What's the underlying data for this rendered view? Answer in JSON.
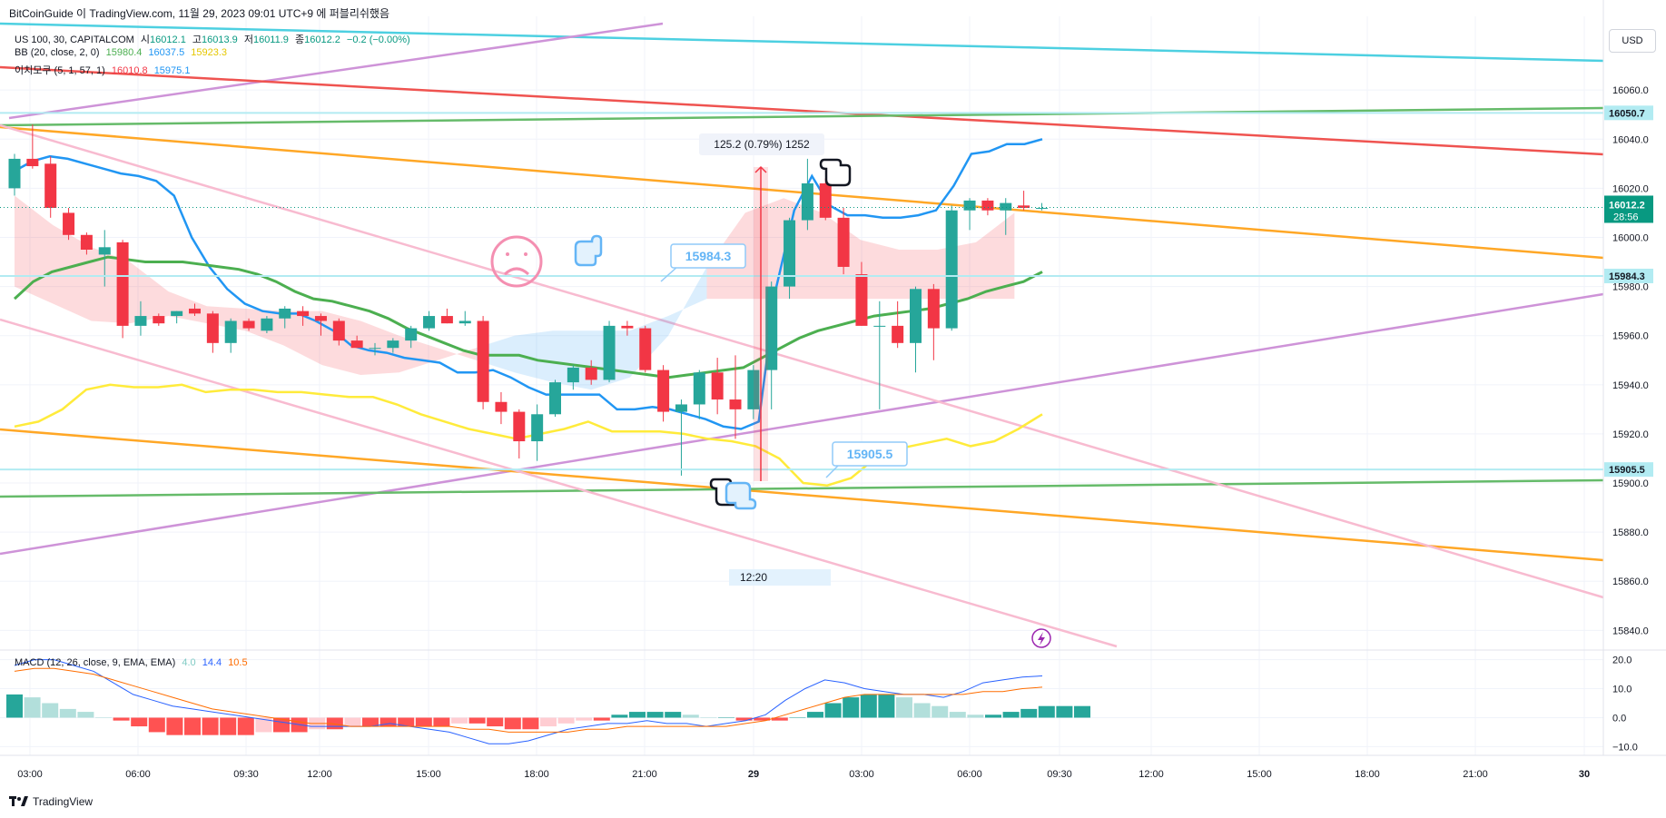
{
  "header": {
    "attribution": "BitCoinGuide 이 TradingView.com, 11월 29, 2023 09:01 UTC+9 에 퍼블리쉬했음"
  },
  "legend": {
    "symbol": "US 100, 30, CAPITALCOM",
    "open_label": "시",
    "open": "16012.1",
    "high_label": "고",
    "high": "16013.9",
    "low_label": "저",
    "low": "16011.9",
    "close_label": "종",
    "close": "16012.2",
    "change": "−0.2 (−0.00%)",
    "bb_label": "BB (20, close, 2, 0)",
    "bb_basis": "15980.4",
    "bb_upper": "16037.5",
    "bb_lower": "15923.3",
    "ichimoku_label": "이치모쿠 (5, 1, 57, 1)",
    "ichi_a": "16010.8",
    "ichi_b": "15975.1",
    "macd_label": "MACD (12, 26, close, 9, EMA, EMA)",
    "macd_hist": "4.0",
    "macd_line": "14.4",
    "macd_signal": "10.5"
  },
  "currency": "USD",
  "annotations": {
    "measure": "125.2 (0.79%) 1252",
    "callout_1": "15984.3",
    "callout_2": "15905.5",
    "time_marker": "12:20"
  },
  "price_badges": {
    "hline_top": "16050.7",
    "current": "16012.2",
    "countdown": "28:56",
    "hline_mid": "15984.3",
    "hline_low": "15905.5"
  },
  "footer": {
    "brand": "TradingView"
  },
  "colors": {
    "up": "#26a69a",
    "down": "#f23645",
    "bb_basis": "#4caf50",
    "bb_upper": "#2196f3",
    "bb_lower": "#ffeb3b",
    "ichi_a": "#f23645",
    "ichi_b": "#2196f3",
    "macd_line": "#2962ff",
    "macd_signal": "#ff6d00",
    "hist_up_strong": "#26a69a",
    "hist_up_weak": "#b2dfdb",
    "hist_down_strong": "#ff5252",
    "hist_down_weak": "#ffcdd2"
  },
  "chart_data": [
    {
      "type": "candlestick",
      "title": "US 100, 30, CAPITALCOM",
      "y_ticks": [
        15840,
        15860,
        15880,
        15900,
        15920,
        15940,
        15960,
        15980,
        16000,
        16020,
        16040,
        16060
      ],
      "ylim": [
        15832,
        16090
      ],
      "x_ticks": [
        "03:00",
        "06:00",
        "09:30",
        "12:00",
        "15:00",
        "18:00",
        "21:00",
        "29",
        "03:00",
        "06:00",
        "09:30",
        "12:00",
        "15:00",
        "18:00",
        "21:00",
        "30"
      ],
      "candles": [
        [
          16020,
          16034,
          16017,
          16032
        ],
        [
          16032,
          16046,
          16028,
          16029
        ],
        [
          16030,
          16033,
          16008,
          16012
        ],
        [
          16010,
          16012,
          15999,
          16001
        ],
        [
          16001,
          16002,
          15993,
          15995
        ],
        [
          15993,
          16003,
          15980,
          15996
        ],
        [
          15998,
          15999,
          15959,
          15964
        ],
        [
          15964,
          15974,
          15960,
          15968
        ],
        [
          15968,
          15969,
          15964,
          15965
        ],
        [
          15968,
          15970,
          15965,
          15970
        ],
        [
          15971,
          15973,
          15968,
          15969
        ],
        [
          15969,
          15970,
          15953,
          15957
        ],
        [
          15957,
          15967,
          15953,
          15966
        ],
        [
          15966,
          15967,
          15962,
          15963
        ],
        [
          15962,
          15968,
          15961,
          15967
        ],
        [
          15967,
          15972,
          15963,
          15971
        ],
        [
          15970,
          15972,
          15964,
          15968
        ],
        [
          15968,
          15969,
          15960,
          15966
        ],
        [
          15966,
          15967,
          15956,
          15958
        ],
        [
          15958,
          15960,
          15955,
          15955
        ],
        [
          15955,
          15957,
          15952,
          15955
        ],
        [
          15955,
          15959,
          15953,
          15958
        ],
        [
          15958,
          15964,
          15955,
          15963
        ],
        [
          15963,
          15970,
          15962,
          15968
        ],
        [
          15968,
          15971,
          15965,
          15965
        ],
        [
          15965,
          15970,
          15964,
          15966
        ],
        [
          15966,
          15968,
          15930,
          15933
        ],
        [
          15933,
          15937,
          15924,
          15929
        ],
        [
          15929,
          15930,
          15910,
          15917
        ],
        [
          15917,
          15932,
          15909,
          15928
        ],
        [
          15928,
          15942,
          15927,
          15941
        ],
        [
          15941,
          15948,
          15938,
          15947
        ],
        [
          15947,
          15950,
          15940,
          15942
        ],
        [
          15942,
          15966,
          15941,
          15964
        ],
        [
          15964,
          15966,
          15960,
          15963
        ],
        [
          15963,
          15964,
          15945,
          15946
        ],
        [
          15946,
          15948,
          15925,
          15929
        ],
        [
          15929,
          15934,
          15903,
          15932
        ],
        [
          15932,
          15946,
          15926,
          15945
        ],
        [
          15945,
          15951,
          15928,
          15934
        ],
        [
          15934,
          15952,
          15918,
          15930
        ],
        [
          15930,
          15948,
          15926,
          15946
        ],
        [
          15946,
          15982,
          15930,
          15980
        ],
        [
          15980,
          16008,
          15975,
          16007
        ],
        [
          16007,
          16032,
          16003,
          16022
        ],
        [
          16022,
          16024,
          16007,
          16008
        ],
        [
          16008,
          16012,
          15985,
          15988
        ],
        [
          15985,
          15990,
          15964,
          15964
        ],
        [
          15964,
          15974,
          15930,
          15964
        ],
        [
          15964,
          15974,
          15955,
          15957
        ],
        [
          15957,
          15980,
          15945,
          15979
        ],
        [
          15979,
          15981,
          15950,
          15963
        ],
        [
          15963,
          16013,
          15962,
          16011
        ],
        [
          16011,
          16016,
          16003,
          16015
        ],
        [
          16015,
          16016,
          16009,
          16011
        ],
        [
          16011,
          16016,
          16001,
          16014
        ],
        [
          16013,
          16019,
          16011,
          16012
        ],
        [
          16012,
          16014,
          16011,
          16012
        ]
      ],
      "bb_upper": [
        16027,
        16031,
        16033,
        16032,
        16030,
        16028,
        16026,
        16025,
        16023,
        16017,
        16000,
        15988,
        15979,
        15973,
        15970,
        15969,
        15969,
        15966,
        15962,
        15956,
        15954,
        15953,
        15951,
        15950,
        15949,
        15945,
        15945,
        15946,
        15943,
        15939,
        15936,
        15936,
        15936,
        15936,
        15930,
        15930,
        15931,
        15930,
        15928,
        15926,
        15923,
        15922,
        15925,
        15980,
        16011,
        16025,
        16013,
        16009,
        16009,
        16008,
        16008,
        16009,
        16011,
        16021,
        16034,
        16035,
        16038,
        16038,
        16040
      ],
      "bb_basis": [
        15975,
        15982,
        15986,
        15988,
        15990,
        15992,
        15991,
        15990,
        15990,
        15990,
        15989,
        15988,
        15987,
        15985,
        15982,
        15978,
        15975,
        15974,
        15972,
        15970,
        15967,
        15963,
        15960,
        15957,
        15954,
        15952,
        15952,
        15952,
        15950,
        15949,
        15948,
        15947,
        15946,
        15945,
        15944,
        15943,
        15944,
        15945,
        15946,
        15947,
        15951,
        15955,
        15959,
        15962,
        15964,
        15966,
        15968,
        15969,
        15970,
        15971,
        15973,
        15975,
        15978,
        15980,
        15982,
        15986
      ],
      "bb_lower": [
        15923,
        15925,
        15930,
        15938,
        15940,
        15939,
        15939,
        15940,
        15937,
        15938,
        15938,
        15937,
        15937,
        15936,
        15935,
        15935,
        15932,
        15928,
        15925,
        15922,
        15920,
        15918,
        15920,
        15922,
        15925,
        15921,
        15921,
        15921,
        15920,
        15918,
        15917,
        15915,
        15910,
        15900,
        15899,
        15902,
        15910,
        15914,
        15916,
        15918,
        15915,
        15917,
        15922,
        15928
      ],
      "ichimoku_a": [
        16017,
        16005,
        15996,
        15990,
        15978,
        15972,
        15971,
        15970,
        15970,
        15966,
        15960,
        15955,
        15950,
        15945,
        15941,
        15938,
        15943,
        15960,
        15988,
        16010,
        16016,
        16010,
        15999,
        15995,
        15995,
        15998,
        16010
      ],
      "ichimoku_b": [
        15980,
        15973,
        15966,
        15965,
        15968,
        15965,
        15962,
        15956,
        15948,
        15944,
        15945,
        15950,
        15955,
        15960,
        15962,
        15962,
        15962,
        15968,
        15975,
        15975,
        15975,
        15975,
        15975,
        15975,
        15975,
        15975,
        15975
      ],
      "horizontal_lines": [
        16050.7,
        15984.3,
        15905.5
      ],
      "current_price": 16012.2
    },
    {
      "type": "bar",
      "title": "MACD (12, 26, close, 9, EMA, EMA)",
      "y_ticks": [
        -10,
        0,
        10,
        20
      ],
      "ylim": [
        -13,
        23
      ],
      "histogram": [
        8,
        7,
        5,
        3,
        2,
        0,
        -1,
        -3,
        -5,
        -6,
        -6,
        -6,
        -6,
        -6,
        -5,
        -5,
        -5,
        -4,
        -4,
        -3,
        -3,
        -3,
        -3,
        -3,
        -3,
        -2,
        -2,
        -3,
        -4,
        -4,
        -3,
        -2,
        -1,
        -1,
        1,
        2,
        2,
        2,
        1,
        0,
        0,
        -1,
        -1,
        -1,
        0,
        2,
        5,
        7,
        8,
        8,
        7,
        5,
        4,
        2,
        1,
        1,
        2,
        3,
        4,
        4,
        4
      ],
      "macd_line": [
        18,
        20,
        20,
        18,
        16,
        12,
        8,
        6,
        4,
        3,
        2,
        1,
        0,
        -1,
        -2,
        -3,
        -3,
        -3,
        -3,
        -2,
        -3,
        -4,
        -5,
        -7,
        -9,
        -9,
        -8,
        -6,
        -4,
        -3,
        -2,
        -2,
        -1,
        -2,
        -2,
        -3,
        -2,
        -1,
        1,
        6,
        10,
        13,
        12,
        10,
        9,
        8,
        8,
        7,
        9,
        12,
        13,
        14,
        14.4
      ],
      "signal_line": [
        16,
        17,
        17,
        16,
        15,
        13,
        11,
        9,
        7,
        5,
        3,
        2,
        1,
        0,
        -1,
        -2,
        -2,
        -3,
        -3,
        -3,
        -3,
        -3,
        -3,
        -4,
        -4,
        -5,
        -5,
        -5,
        -5,
        -4,
        -4,
        -3,
        -3,
        -3,
        -3,
        -3,
        -3,
        -2,
        -1,
        1,
        3,
        5,
        7,
        8,
        8,
        8,
        8,
        8,
        8,
        9,
        9,
        10,
        10.5
      ]
    }
  ]
}
